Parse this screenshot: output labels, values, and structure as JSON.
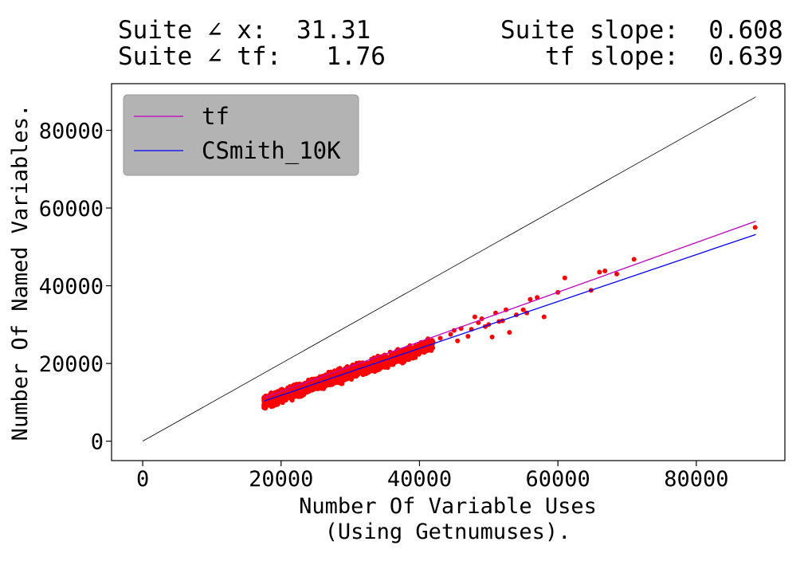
{
  "header": {
    "suite_angle_x_label": "Suite ∠ x:",
    "suite_angle_x_value": "31.31",
    "suite_angle_tf_label": "Suite ∠ tf:",
    "suite_angle_tf_value": "1.76",
    "suite_slope_label": "Suite slope:",
    "suite_slope_value": "0.608",
    "tf_slope_label": "tf slope:",
    "tf_slope_value": "0.639"
  },
  "chart_data": {
    "type": "scatter",
    "xlabel_line1": "Number Of Variable Uses",
    "xlabel_line2": "(Using Getnumuses).",
    "ylabel": "Number Of Named Variables.",
    "xlim": [
      -4500,
      92800
    ],
    "ylim": [
      -5000,
      92000
    ],
    "xticks": [
      0,
      20000,
      40000,
      60000,
      80000
    ],
    "yticks": [
      0,
      20000,
      40000,
      60000,
      80000
    ],
    "grid": false,
    "legend_position": "upper-left",
    "colors": {
      "tf": "#bf00bf",
      "csmith": "#0000ff",
      "points": "#ff0000",
      "reference": "#000000",
      "legend_bg": "#b3b3b3"
    },
    "lines": [
      {
        "name": "tf",
        "x": [
          17500,
          88600
        ],
        "y": [
          11200,
          56600
        ]
      },
      {
        "name": "CSmith_10K",
        "x": [
          17500,
          88600
        ],
        "y": [
          10300,
          53200
        ]
      },
      {
        "name": "",
        "x": [
          0,
          88600
        ],
        "y": [
          0,
          88600
        ]
      }
    ],
    "legend": [
      "tf",
      "CSmith_10K"
    ],
    "cluster": {
      "x_from": 17500,
      "x_to": 42000,
      "slope": 0.608,
      "intercept": -650
    },
    "outliers": [
      [
        43000,
        26500
      ],
      [
        44500,
        27500
      ],
      [
        45000,
        28500
      ],
      [
        45500,
        25800
      ],
      [
        46000,
        29000
      ],
      [
        47000,
        27000
      ],
      [
        47500,
        28800
      ],
      [
        48000,
        32000
      ],
      [
        48500,
        30500
      ],
      [
        49000,
        31500
      ],
      [
        49500,
        29500
      ],
      [
        50000,
        30000
      ],
      [
        50500,
        26800
      ],
      [
        51000,
        33000
      ],
      [
        51500,
        30800
      ],
      [
        52000,
        31000
      ],
      [
        52500,
        33800
      ],
      [
        53000,
        28000
      ],
      [
        54000,
        32500
      ],
      [
        55000,
        33800
      ],
      [
        55500,
        33000
      ],
      [
        56000,
        36500
      ],
      [
        57000,
        37000
      ],
      [
        58000,
        32000
      ],
      [
        60000,
        38300
      ],
      [
        61000,
        42000
      ],
      [
        64800,
        38800
      ],
      [
        66000,
        43500
      ],
      [
        66800,
        43800
      ],
      [
        68500,
        43000
      ],
      [
        71000,
        46800
      ],
      [
        88500,
        55000
      ]
    ]
  }
}
